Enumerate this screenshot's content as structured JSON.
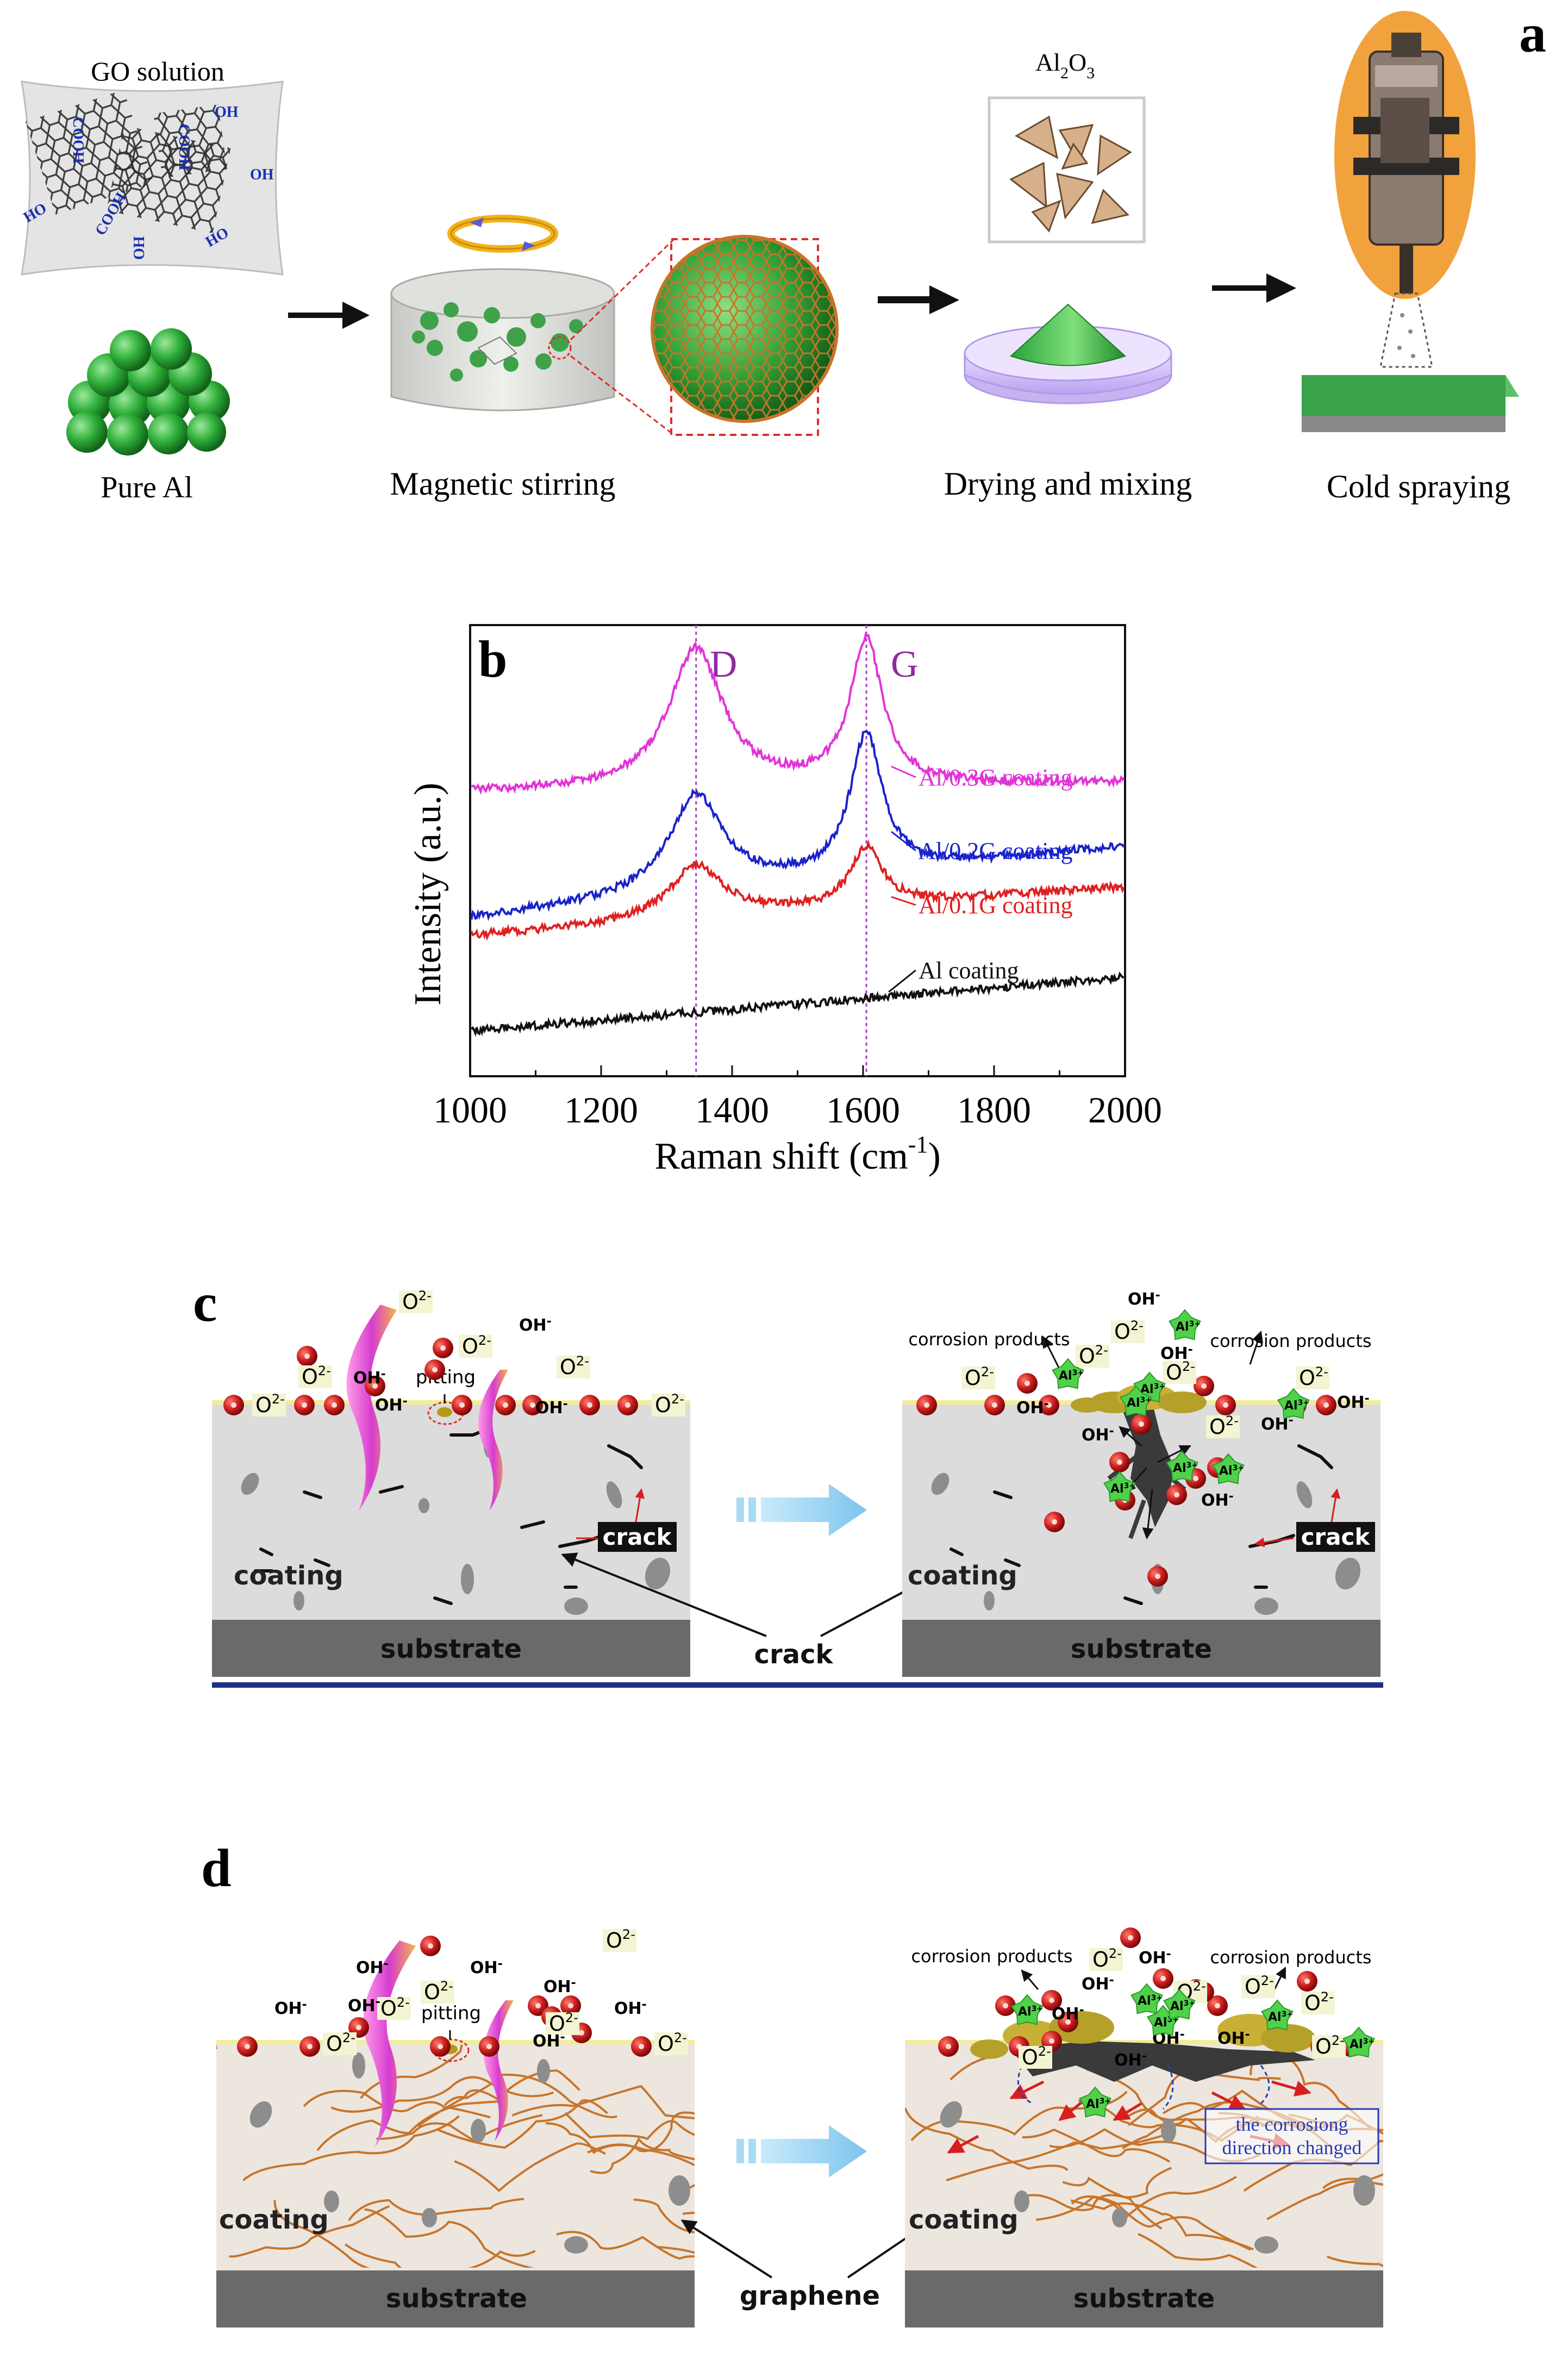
{
  "panel_a": {
    "letter": "a",
    "go_solution": "GO solution",
    "pure_al": "Pure Al",
    "magnetic_stirring": "Magnetic stirring",
    "al2o3_main": "Al",
    "al2o3_sub": "2",
    "al2o3_tail": "O",
    "al2o3_sub2": "3",
    "drying_mixing": "Drying and mixing",
    "cold_spraying": "Cold spraying",
    "groups": {
      "cooh": "COOH",
      "oh": "OH",
      "ho": "HO"
    }
  },
  "panel_b": {
    "letter": "b",
    "peak_d": "D",
    "peak_g": "G"
  },
  "chart_data": {
    "type": "line",
    "title": "",
    "xlabel": "Raman shift (cm-1)",
    "xlabel_main": "Raman shift (cm",
    "xlabel_sup": "-1",
    "xlabel_tail": ")",
    "ylabel": "Intensity (a.u.)",
    "xlim": [
      1000,
      2000
    ],
    "ylim": [
      0,
      10
    ],
    "xticks": [
      "1000",
      "1200",
      "1400",
      "1600",
      "1800",
      "2000"
    ],
    "ref_lines": [
      1345,
      1605
    ],
    "series": [
      {
        "name": "Al/0.3G coating",
        "color": "#e233d8",
        "base_start": 6.3,
        "base_end": 6.5,
        "d_height": 3.1,
        "g_height": 3.2
      },
      {
        "name": "Al/0.2G coating",
        "color": "#1a22cc",
        "base_start": 3.5,
        "base_end": 5.1,
        "d_height": 2.2,
        "g_height": 3.1
      },
      {
        "name": "Al/0.1G coating",
        "color": "#e02020",
        "base_start": 3.1,
        "base_end": 4.2,
        "d_height": 1.2,
        "g_height": 1.3
      },
      {
        "name": "Al coating",
        "color": "#111111",
        "base_start": 1.0,
        "base_end": 2.2,
        "d_height": 0.0,
        "g_height": 0.0
      }
    ]
  },
  "panel_c": {
    "letter": "c",
    "pitting": "pitting",
    "crack_left": "crack",
    "crack_right": "crack",
    "crack_center": "crack",
    "coating_left": "coating",
    "coating_right": "coating",
    "substrate_left": "substrate",
    "substrate_right": "substrate",
    "corrosion_products_left": "corrosion products",
    "corrosion_products_right": "corrosion products"
  },
  "panel_d": {
    "letter": "d",
    "pitting": "pitting",
    "coating_left": "coating",
    "coating_right": "coating",
    "substrate_left": "substrate",
    "substrate_right": "substrate",
    "graphene": "graphene",
    "corrosion_products_left": "corrosion products",
    "corrosion_products_right": "corrosion products",
    "direction_line1": "the corrosiong",
    "direction_line2": "direction changed"
  },
  "ions": {
    "oxide": "O",
    "oxide_charge": "2-",
    "hydroxide": "OH",
    "hydroxide_charge": "-",
    "al": "Al",
    "al_charge": "3+"
  },
  "colors": {
    "green": "#2fae3a",
    "graphene_orange": "#c8742a",
    "ion_red": "#c81c1c",
    "coating_gray": "#d8d8d8",
    "substrate_gray": "#6a6a6a",
    "arrow_blue": "#8ecdf0"
  }
}
